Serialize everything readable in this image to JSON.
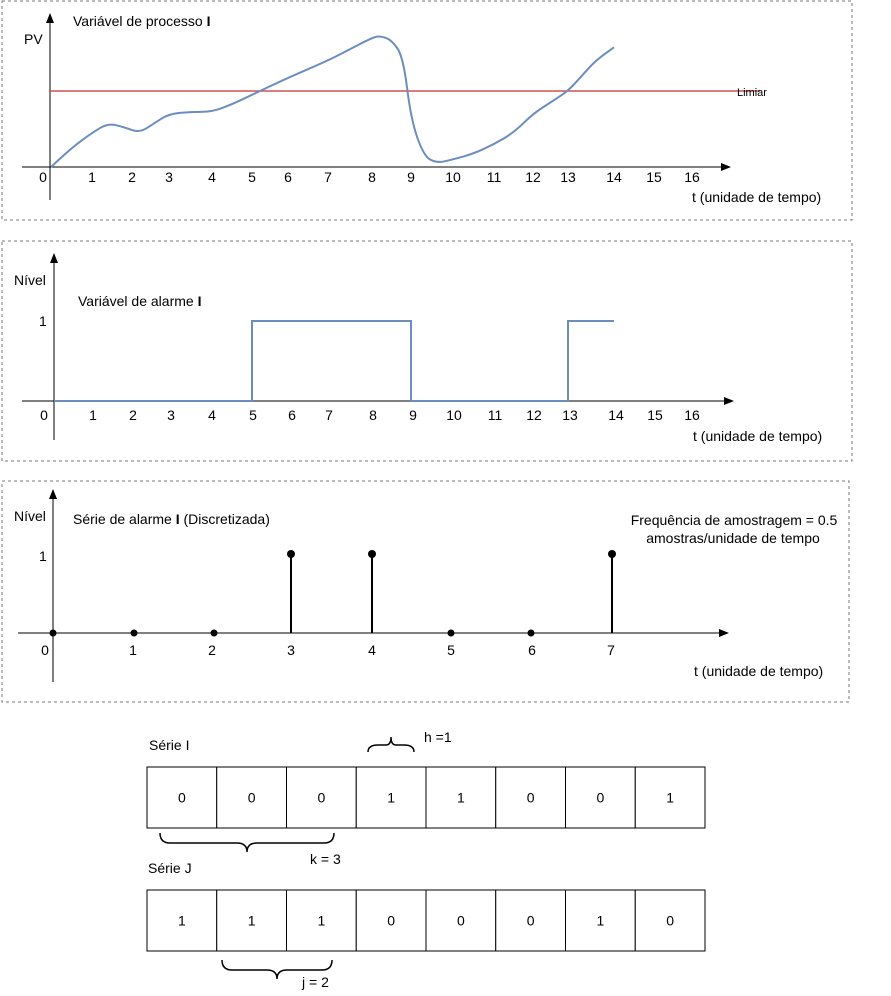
{
  "panel1": {
    "title_prefix": "Variável de processo ",
    "title_bold": "I",
    "ylabel": "PV",
    "xlabel": "t (unidade de tempo)",
    "threshold_label": "Limiar",
    "ticks": [
      "0",
      "1",
      "2",
      "3",
      "4",
      "5",
      "6",
      "7",
      "8",
      "9",
      "10",
      "11",
      "12",
      "13",
      "14",
      "15",
      "16"
    ],
    "line_color": "#6c8ebf",
    "threshold_color": "#d05050"
  },
  "panel2": {
    "title_prefix": "Variável de alarme ",
    "title_bold": "I",
    "ylabel": "Nível",
    "level_label": "1",
    "xlabel": "t (unidade de tempo)",
    "ticks": [
      "0",
      "1",
      "2",
      "3",
      "4",
      "5",
      "6",
      "7",
      "8",
      "9",
      "10",
      "11",
      "12",
      "13",
      "14",
      "15",
      "16"
    ],
    "line_color": "#6c8ebf"
  },
  "panel3": {
    "title_prefix": "Série de alarme ",
    "title_bold": "I",
    "title_suffix": " (Discretizada)",
    "ylabel": "Nível",
    "level_label": "1",
    "xlabel": "t (unidade de tempo)",
    "sampling_line1": "Frequência de amostragem = 0.5",
    "sampling_line2": "amostras/unidade de tempo",
    "ticks": [
      "0",
      "1",
      "2",
      "3",
      "4",
      "5",
      "6",
      "7"
    ]
  },
  "chart_data": [
    {
      "type": "line",
      "series": [
        {
          "x": [
            0,
            0.5,
            1,
            1.4,
            1.8,
            2.2,
            2.6,
            3,
            3.5,
            4,
            4.5,
            5,
            6,
            7,
            7.5,
            8,
            8.2,
            8.5,
            8.8,
            9,
            9.3,
            9.6,
            10,
            10.5,
            11,
            11.5,
            12,
            12.5,
            13,
            13.3,
            13.6,
            14
          ],
          "y": [
            0,
            0.2,
            0.36,
            0.46,
            0.42,
            0.36,
            0.46,
            0.56,
            0.58,
            0.58,
            0.66,
            0.76,
            0.94,
            1.12,
            1.24,
            1.36,
            1.38,
            1.34,
            1.16,
            0.5,
            0.12,
            0.04,
            0.08,
            0.14,
            0.24,
            0.36,
            0.56,
            0.68,
            0.8,
            0.96,
            1.12,
            1.26
          ]
        }
      ],
      "threshold": 0.8,
      "xlim": [
        0,
        17
      ]
    },
    {
      "type": "line",
      "series": [
        {
          "x": [
            0,
            5,
            5,
            9,
            9,
            13,
            13,
            14
          ],
          "y": [
            0,
            0,
            1,
            1,
            0,
            0,
            1,
            1
          ]
        }
      ],
      "ylim": [
        0,
        1
      ],
      "xlim": [
        0,
        17
      ]
    },
    {
      "type": "scatter",
      "x": [
        0,
        1,
        2,
        3,
        4,
        5,
        6,
        7
      ],
      "values": [
        0,
        0,
        0,
        1,
        1,
        0,
        0,
        1
      ],
      "ylim": [
        0,
        1
      ]
    }
  ],
  "series_i": {
    "label": "Série I",
    "values": [
      "0",
      "0",
      "0",
      "1",
      "1",
      "0",
      "0",
      "1"
    ],
    "h_label": "h =1",
    "k_label": "k = 3"
  },
  "series_j": {
    "label": "Série J",
    "values": [
      "1",
      "1",
      "1",
      "0",
      "0",
      "0",
      "1",
      "0"
    ],
    "j_label": "j = 2"
  }
}
